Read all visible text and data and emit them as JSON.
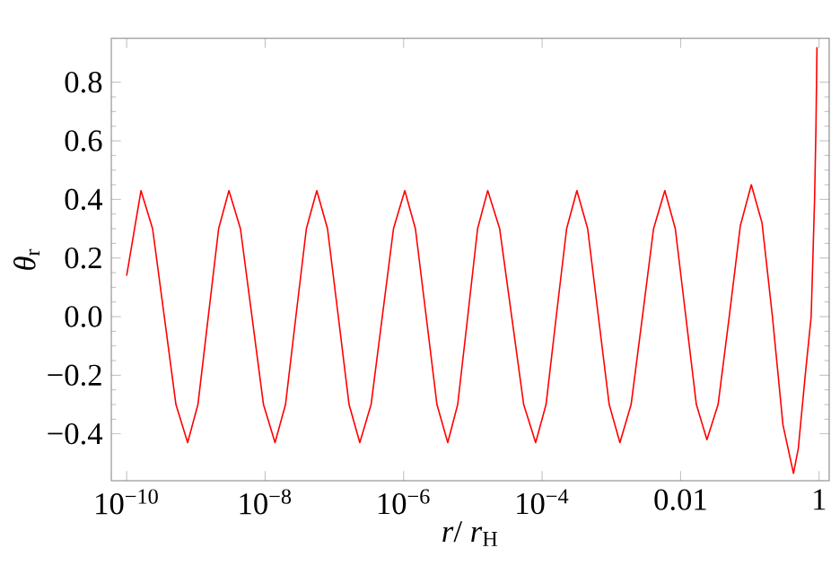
{
  "chart_data": {
    "type": "line",
    "xlabel": "*r*/ *r*$_{H}$",
    "ylabel": "*θ*$_{r}$",
    "log": "x",
    "color": "#ff0000",
    "x": [
      1e-10,
      1.61e-10,
      2.37e-10,
      3.5e-10,
      5.15e-10,
      7.6e-10,
      1.07e-09,
      1.51e-09,
      2.13e-09,
      3e-09,
      4.4e-09,
      6.46e-09,
      9.46e-09,
      1.39e-08,
      1.97e-08,
      2.78e-08,
      3.94e-08,
      5.57e-08,
      7.96e-08,
      1.14e-07,
      1.63e-07,
      2.33e-07,
      3.39e-07,
      4.92e-07,
      7.14e-07,
      1.04e-06,
      1.48e-06,
      2.12e-06,
      3.03e-06,
      4.34e-06,
      6.04e-06,
      8.43e-06,
      1.17e-05,
      1.64e-05,
      2.44e-05,
      3.64e-05,
      5.42e-05,
      8.07e-05,
      0.000114,
      0.00016,
      0.000226,
      0.000318,
      0.000455,
      0.00065,
      0.000931,
      0.00133,
      0.00193,
      0.00281,
      0.00407,
      0.00592,
      0.00839,
      0.0119,
      0.0169,
      0.024,
      0.0348,
      0.0504,
      0.0729,
      0.105,
      0.15,
      0.212,
      0.301,
      0.427,
      0.501,
      0.631,
      0.769,
      0.861,
      0.902,
      0.933
    ],
    "values": [
      0.14,
      0.43,
      0.3,
      0.0,
      -0.3,
      -0.43,
      -0.3,
      0.0,
      0.3,
      0.43,
      0.3,
      0.0,
      -0.3,
      -0.43,
      -0.3,
      0.0,
      0.3,
      0.43,
      0.3,
      0.0,
      -0.3,
      -0.43,
      -0.3,
      0.0,
      0.3,
      0.43,
      0.3,
      0.0,
      -0.3,
      -0.43,
      -0.3,
      0.0,
      0.3,
      0.43,
      0.3,
      0.0,
      -0.3,
      -0.43,
      -0.3,
      0.0,
      0.3,
      0.43,
      0.3,
      0.0,
      -0.3,
      -0.43,
      -0.3,
      0.0,
      0.3,
      0.43,
      0.3,
      0.0,
      -0.3,
      -0.42,
      -0.3,
      0.0,
      0.31,
      0.45,
      0.32,
      0.0,
      -0.37,
      -0.535,
      -0.45,
      -0.2,
      0.0,
      0.4,
      0.65,
      0.92
    ],
    "xlim": [
      6e-11,
      1.4
    ],
    "ylim": [
      -0.56,
      0.95
    ],
    "xticks": [
      {
        "value": 1e-10,
        "label": "10$^{−10}$"
      },
      {
        "value": 1e-08,
        "label": "10$^{−8}$"
      },
      {
        "value": 1e-06,
        "label": "10$^{−6}$"
      },
      {
        "value": 0.0001,
        "label": "10$^{−4}$"
      },
      0.01,
      1
    ],
    "yticks": [
      {
        "value": -0.4,
        "label": "−0.4"
      },
      {
        "value": -0.2,
        "label": "−0.2"
      },
      {
        "value": 0.0,
        "label": "0.0"
      },
      0.2,
      0.4,
      0.6,
      0.8
    ]
  }
}
